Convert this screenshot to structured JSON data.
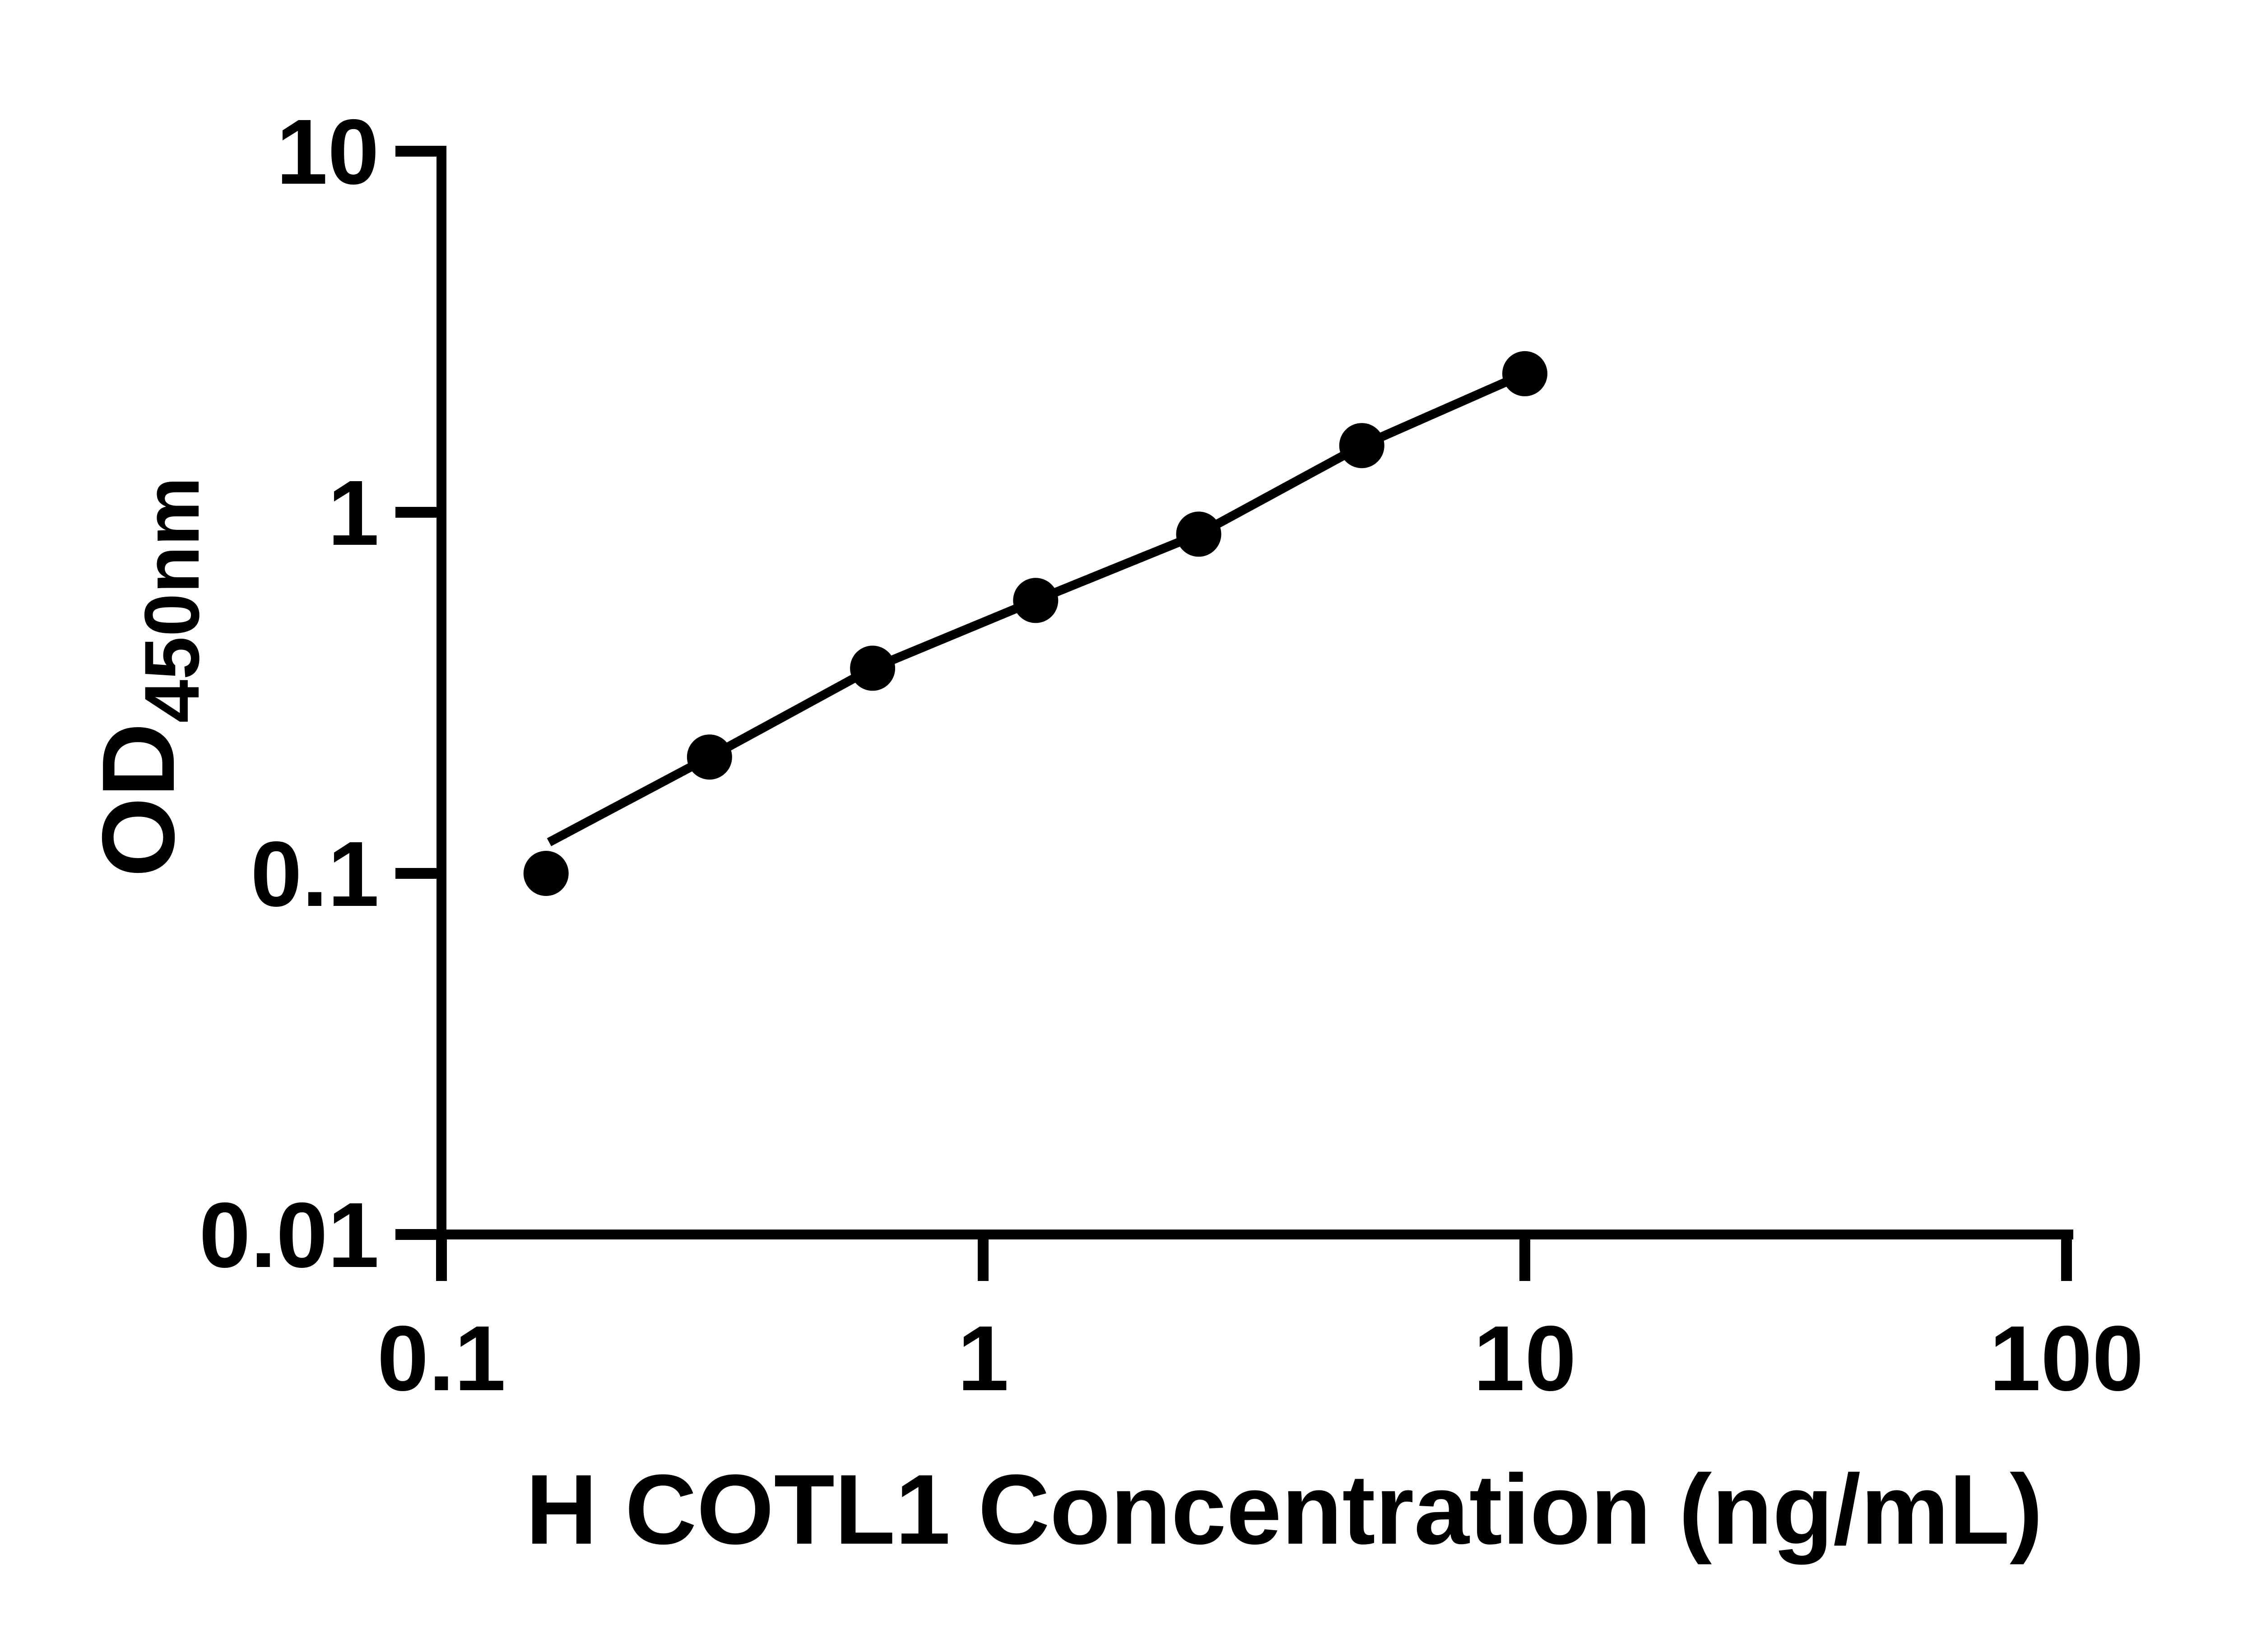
{
  "chart_data": {
    "type": "scatter",
    "title": "",
    "xlabel": "H COTL1 Concentration (ng/mL)",
    "ylabel_main": "OD",
    "ylabel_sub": "450nm",
    "x_scale": "log",
    "y_scale": "log",
    "xlim": [
      0.1,
      100
    ],
    "ylim": [
      0.01,
      10
    ],
    "x_ticks": [
      {
        "value": 0.1,
        "label": "0.1"
      },
      {
        "value": 1,
        "label": "1"
      },
      {
        "value": 10,
        "label": "10"
      },
      {
        "value": 100,
        "label": "100"
      }
    ],
    "y_ticks": [
      {
        "value": 10,
        "label": "10"
      },
      {
        "value": 1,
        "label": "1"
      },
      {
        "value": 0.1,
        "label": "0.1"
      },
      {
        "value": 0.01,
        "label": "0.01"
      }
    ],
    "series": [
      {
        "name": "standard-curve-points",
        "x": [
          0.156,
          0.3125,
          0.625,
          1.25,
          2.5,
          5,
          10
        ],
        "y": [
          0.1,
          0.21,
          0.37,
          0.57,
          0.87,
          1.53,
          2.42
        ]
      }
    ],
    "fit_line": {
      "x": [
        0.158,
        0.3125,
        0.625,
        1.25,
        2.5,
        5,
        10
      ],
      "y": [
        0.122,
        0.21,
        0.37,
        0.57,
        0.87,
        1.53,
        2.42
      ]
    },
    "grid": false,
    "legend": "none",
    "marker_color": "#000000",
    "line_color": "#000000",
    "axis_color": "#000000",
    "background": "#ffffff"
  }
}
